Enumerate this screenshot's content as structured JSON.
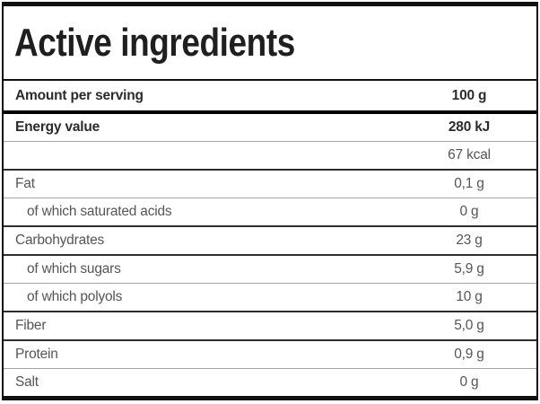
{
  "title": "Active ingredients",
  "table": {
    "header": {
      "label": "Amount per serving",
      "value": "100 g"
    },
    "rows": [
      {
        "label": "Energy value",
        "value": "280 kJ"
      },
      {
        "label": "",
        "value": "67 kcal"
      },
      {
        "label": "Fat",
        "value": "0,1 g"
      },
      {
        "label": "of which saturated acids",
        "value": "0 g"
      },
      {
        "label": "Carbohydrates",
        "value": "23 g"
      },
      {
        "label": "of which sugars",
        "value": "5,9 g"
      },
      {
        "label": "of which polyols",
        "value": "10 g"
      },
      {
        "label": "Fiber",
        "value": "5,0 g"
      },
      {
        "label": "Protein",
        "value": "0,9 g"
      },
      {
        "label": "Salt",
        "value": "0 g"
      }
    ]
  },
  "colors": {
    "border": "#111111",
    "title-text": "#1f1f1f",
    "bold-text": "#2b2b2b",
    "text": "#555555",
    "bg": "#ffffff"
  }
}
